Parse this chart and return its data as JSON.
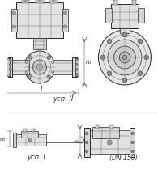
{
  "bg_color": "#ffffff",
  "line_color": "#5a5a5a",
  "dark_color": "#2a2a2a",
  "text_color": "#333333",
  "label_L": "L",
  "label_H1": "H₁",
  "label_isp1": "усп. I",
  "label_isp2": "усп. II",
  "label_dn": "(DN 150)",
  "figsize": [
    1.95,
    2.26
  ],
  "dpi": 100,
  "xlim": [
    0,
    195
  ],
  "ylim": [
    0,
    226
  ]
}
